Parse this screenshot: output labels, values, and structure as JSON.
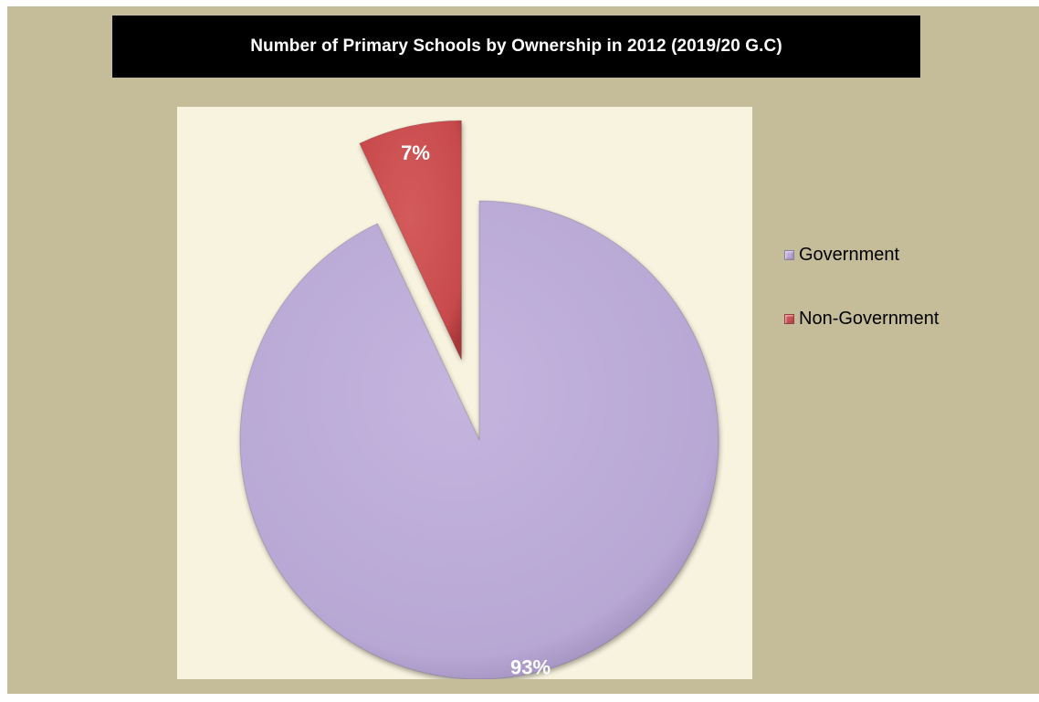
{
  "chart_data": {
    "type": "pie",
    "title": "Number of Primary Schools by Ownership in 2012 (2019/20 G.C)",
    "categories": [
      "Government",
      "Non-Government"
    ],
    "values": [
      93,
      7
    ],
    "data_labels": [
      "93%",
      "7%"
    ],
    "colors": [
      "#bcaad7",
      "#cd5052"
    ],
    "exploded": [
      false,
      true
    ],
    "legend_position": "right"
  },
  "legend": {
    "items": [
      {
        "label": "Government",
        "color": "#bcaad7"
      },
      {
        "label": "Non-Government",
        "color": "#cd5052"
      }
    ]
  }
}
